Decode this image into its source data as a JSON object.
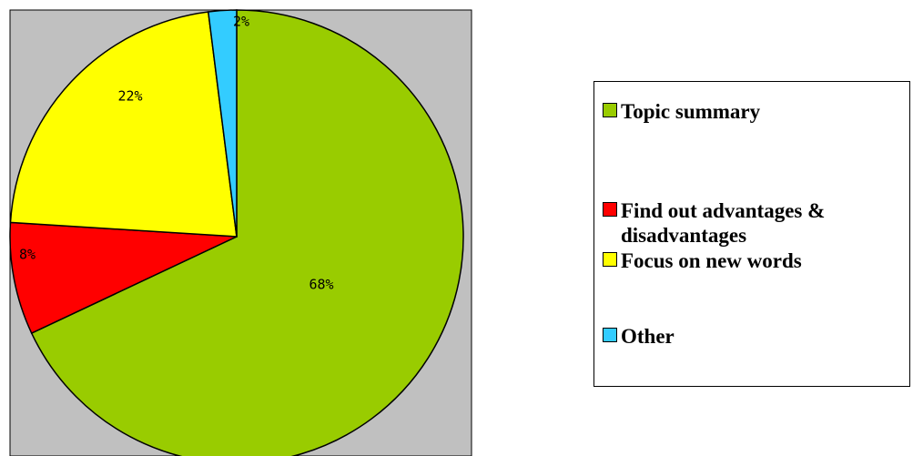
{
  "chart_data": {
    "type": "pie",
    "categories": [
      "Topic summary",
      "Find out advantages & disadvantages",
      "Focus on new words",
      "Other"
    ],
    "values": [
      68,
      8,
      22,
      2
    ],
    "data_labels": [
      "68%",
      "8%",
      "22%",
      "2%"
    ],
    "colors": [
      "#99cc00",
      "#ff0000",
      "#ffff00",
      "#33ccff"
    ],
    "plot_background": "#c0c0c0",
    "legend_position": "right",
    "direction": "clockwise from top"
  }
}
